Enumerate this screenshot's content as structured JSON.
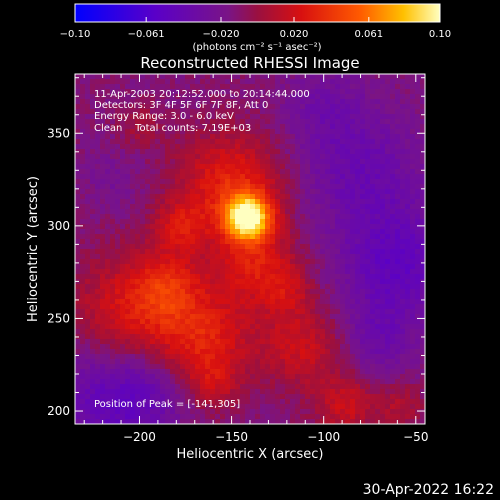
{
  "colorbar": {
    "ticks": [
      "-0.10",
      "-0.061",
      "-0.020",
      "0.020",
      "0.061",
      "0.10"
    ],
    "unit_label": "(photons cm⁻² s⁻¹ asec⁻²)",
    "range": [
      -0.1,
      0.1
    ]
  },
  "annotations": {
    "time": "11-Apr-2003 20:12:52.000 to 20:14:44.000",
    "detectors": "Detectors: 3F 4F 5F 6F 7F 8F, Att 0",
    "energy": "Energy Range: 3.0 - 6.0 keV",
    "clean": "Clean    Total counts: 7.19E+03",
    "peak": "Position of Peak = [-141,305]"
  },
  "footer": {
    "date": "30-Apr-2022 16:22"
  },
  "chart_data": {
    "type": "heatmap",
    "title": "Reconstructed RHESSI Image",
    "xlabel": "Heliocentric X (arcsec)",
    "ylabel": "Heliocentric Y (arcsec)",
    "xlim": [
      -235,
      -45
    ],
    "ylim": [
      193,
      382
    ],
    "x_ticks": [
      {
        "value": -200,
        "label": "−200"
      },
      {
        "value": -150,
        "label": "−150"
      },
      {
        "value": -100,
        "label": "−100"
      },
      {
        "value": -50,
        "label": "−50"
      }
    ],
    "y_ticks": [
      {
        "value": 200,
        "label": "200"
      },
      {
        "value": 250,
        "label": "250"
      },
      {
        "value": 300,
        "label": "300"
      },
      {
        "value": 350,
        "label": "350"
      }
    ],
    "peak": {
      "x": -141,
      "y": 305
    },
    "features": [
      {
        "x": -141,
        "y": 305,
        "radius": 12,
        "value": 0.1
      },
      {
        "x": -150,
        "y": 322,
        "radius": 28,
        "value": 0.045
      },
      {
        "x": -137,
        "y": 280,
        "radius": 22,
        "value": 0.035
      },
      {
        "x": -178,
        "y": 300,
        "radius": 14,
        "value": 0.03
      },
      {
        "x": -205,
        "y": 255,
        "radius": 30,
        "value": 0.035
      },
      {
        "x": -185,
        "y": 268,
        "radius": 18,
        "value": 0.03
      },
      {
        "x": -165,
        "y": 240,
        "radius": 26,
        "value": 0.04
      },
      {
        "x": -160,
        "y": 215,
        "radius": 14,
        "value": 0.02
      },
      {
        "x": -112,
        "y": 235,
        "radius": 22,
        "value": 0.03
      },
      {
        "x": -120,
        "y": 265,
        "radius": 14,
        "value": 0.02
      },
      {
        "x": -88,
        "y": 203,
        "radius": 16,
        "value": 0.03
      },
      {
        "x": -58,
        "y": 203,
        "radius": 12,
        "value": 0.02
      },
      {
        "x": -200,
        "y": 355,
        "radius": 12,
        "value": 0.015
      },
      {
        "x": -220,
        "y": 205,
        "radius": 30,
        "value": -0.03
      },
      {
        "x": -195,
        "y": 210,
        "radius": 22,
        "value": -0.02
      },
      {
        "x": -60,
        "y": 280,
        "radius": 30,
        "value": -0.035
      },
      {
        "x": -80,
        "y": 330,
        "radius": 34,
        "value": -0.025
      },
      {
        "x": -100,
        "y": 365,
        "radius": 22,
        "value": -0.015
      },
      {
        "x": -215,
        "y": 325,
        "radius": 16,
        "value": -0.01
      },
      {
        "x": -70,
        "y": 240,
        "radius": 20,
        "value": -0.02
      }
    ]
  }
}
